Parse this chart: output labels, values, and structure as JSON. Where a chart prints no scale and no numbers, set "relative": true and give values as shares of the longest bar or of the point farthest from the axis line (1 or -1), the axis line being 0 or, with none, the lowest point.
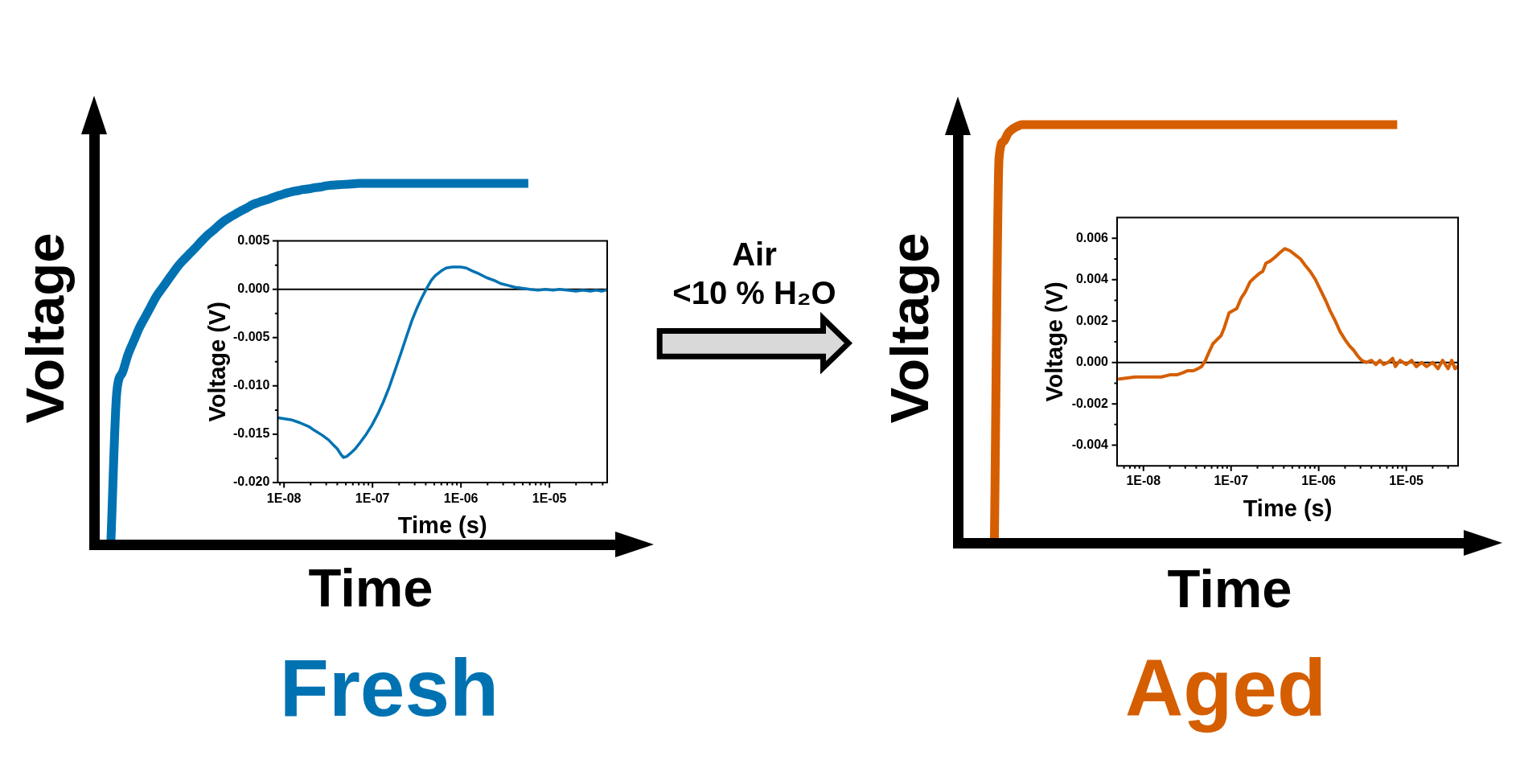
{
  "chart_data": [
    {
      "type": "line",
      "relative": true,
      "title": "Fresh",
      "xlabel": "Time",
      "ylabel": "Voltage",
      "color": "#0072b2",
      "categories": [
        null,
        null,
        null,
        null,
        null,
        null,
        null,
        null,
        null,
        null,
        null,
        null,
        null,
        null,
        null,
        null,
        null,
        null,
        null,
        null,
        null,
        null,
        null,
        null,
        null,
        null,
        null,
        null,
        null,
        null,
        null,
        null,
        null,
        null,
        null,
        null,
        null,
        null,
        null,
        null,
        null,
        null,
        null,
        null,
        null,
        null,
        null,
        null,
        null,
        null,
        null,
        null,
        null,
        null,
        null,
        null,
        null,
        null,
        null,
        null,
        null,
        null,
        null,
        null,
        null,
        null,
        null,
        null,
        null,
        null,
        null,
        null,
        null,
        null,
        null,
        null,
        null,
        null,
        null,
        null,
        null,
        null,
        null,
        null,
        null,
        null,
        null,
        null,
        null,
        null,
        null,
        null,
        null,
        null,
        null,
        null
      ],
      "values": [
        null,
        null,
        null,
        0.02,
        0.42,
        0.476,
        0.526,
        0.563,
        0.6,
        0.629,
        0.658,
        0.687,
        0.709,
        0.731,
        0.753,
        0.774,
        0.791,
        0.807,
        0.823,
        0.84,
        0.856,
        0.869,
        0.883,
        0.896,
        0.906,
        0.915,
        0.924,
        0.932,
        0.941,
        0.947,
        0.952,
        0.957,
        0.963,
        0.968,
        0.973,
        0.977,
        0.98,
        0.983,
        0.985,
        0.988,
        0.99,
        0.993,
        0.995,
        0.996,
        0.997,
        0.998,
        0.999,
        1,
        1,
        1,
        1,
        1,
        1,
        1,
        1,
        1,
        1,
        1,
        1,
        1,
        1,
        1,
        1,
        1,
        1,
        1,
        1,
        1,
        1,
        1,
        1,
        1,
        1,
        1,
        1,
        1,
        1,
        null,
        null,
        null,
        null,
        null,
        null,
        null,
        null,
        null,
        null,
        null,
        null,
        null,
        null,
        null,
        null,
        null,
        null,
        null
      ]
    },
    {
      "type": "line",
      "xlabel": "Time (s)",
      "ylabel": "Voltage (V)",
      "log": "x",
      "color": "#0072b2",
      "xlim": [
        8.5e-09,
        4.5e-05
      ],
      "xticks": [
        {
          "value": 9e-09,
          "label": null
        },
        {
          "value": 1e-08,
          "label": "1E-08"
        },
        {
          "value": 2e-08,
          "label": null
        },
        {
          "value": 3e-08,
          "label": null
        },
        {
          "value": 4e-08,
          "label": null
        },
        {
          "value": 5e-08,
          "label": null
        },
        {
          "value": 6e-08,
          "label": null
        },
        {
          "value": 7e-08,
          "label": null
        },
        {
          "value": 8e-08,
          "label": null
        },
        {
          "value": 9e-08,
          "label": null
        },
        {
          "value": 1e-07,
          "label": "1E-07"
        },
        {
          "value": 2e-07,
          "label": null
        },
        {
          "value": 3e-07,
          "label": null
        },
        {
          "value": 4e-07,
          "label": null
        },
        {
          "value": 5e-07,
          "label": null
        },
        {
          "value": 6e-07,
          "label": null
        },
        {
          "value": 7e-07,
          "label": null
        },
        {
          "value": 8e-07,
          "label": null
        },
        {
          "value": 9e-07,
          "label": null
        },
        {
          "value": 1e-06,
          "label": "1E-06"
        },
        {
          "value": 2e-06,
          "label": null
        },
        {
          "value": 3e-06,
          "label": null
        },
        {
          "value": 4e-06,
          "label": null
        },
        {
          "value": 5e-06,
          "label": null
        },
        {
          "value": 6e-06,
          "label": null
        },
        {
          "value": 7e-06,
          "label": null
        },
        {
          "value": 8e-06,
          "label": null
        },
        {
          "value": 9e-06,
          "label": null
        },
        {
          "value": 1e-05,
          "label": "1E-05"
        },
        {
          "value": 2e-05,
          "label": null
        },
        {
          "value": 3e-05,
          "label": null
        },
        {
          "value": 4e-05,
          "label": null
        }
      ],
      "ylim": [
        -0.02,
        0.005
      ],
      "yticks": [
        {
          "value": -0.02,
          "label": "-0.020"
        },
        {
          "value": -0.0175,
          "label": null
        },
        -0.015,
        {
          "value": -0.0125,
          "label": null
        },
        {
          "value": -0.01,
          "label": "-0.010"
        },
        {
          "value": -0.0075,
          "label": null
        },
        -0.005,
        {
          "value": -0.0025,
          "label": null
        },
        {
          "value": 0,
          "label": "0.000"
        },
        {
          "value": 0.0025,
          "label": null
        },
        0.005
      ],
      "ref_lines": [
        {
          "axis": "y",
          "value": 0,
          "color": "#000000"
        }
      ],
      "x": [
        8.6e-09,
        1.2e-08,
        1.5e-08,
        1.9e-08,
        2.2e-08,
        2.7e-08,
        3.2e-08,
        3.6e-08,
        4e-08,
        4.4e-08,
        4.7e-08,
        5.1e-08,
        5.6e-08,
        6.4e-08,
        7.2e-08,
        8.5e-08,
        9.8e-08,
        1.15e-07,
        1.32e-07,
        1.55e-07,
        1.78e-07,
        2.1e-07,
        2.4e-07,
        2.8e-07,
        3.2e-07,
        3.6e-07,
        4.05e-07,
        4.6e-07,
        5.1e-07,
        6e-07,
        6.8e-07,
        8e-07,
        9.9e-07,
        1.15e-06,
        1.34e-06,
        1.6e-06,
        1.95e-06,
        2.4e-06,
        2.8e-06,
        3.4e-06,
        4.1e-06,
        5e-06,
        6e-06,
        7.5e-06,
        9e-06,
        1.1e-05,
        1.3e-05,
        1.6e-05,
        2e-05,
        2.4e-05,
        2.9e-05,
        3.4e-05,
        3.9e-05,
        4.3e-05,
        4.5e-05
      ],
      "values": [
        -0.0133,
        -0.0135,
        -0.0138,
        -0.0142,
        -0.0146,
        -0.0151,
        -0.0156,
        -0.0161,
        -0.0165,
        -0.0171,
        -0.0174,
        -0.0173,
        -0.017,
        -0.0165,
        -0.0159,
        -0.015,
        -0.0141,
        -0.0129,
        -0.0117,
        -0.0101,
        -0.0085,
        -0.0066,
        -0.005,
        -0.0032,
        -0.0019,
        -0.0009,
        0,
        0.0009,
        0.0014,
        0.0019,
        0.0022,
        0.0023,
        0.0023,
        0.0022,
        0.0019,
        0.0016,
        0.0012,
        0.0009,
        0.0006,
        0.0004,
        0.0002,
        0.0001,
        0,
        -0.0001,
        0,
        -0.0001,
        0,
        -0.0001,
        -0.0002,
        -0.0001,
        -0.0002,
        -0.0001,
        -0.0002,
        -0.0001,
        0
      ]
    },
    {
      "type": "other",
      "annotations": [
        "Air",
        "<10 % H₂O"
      ]
    },
    {
      "type": "line",
      "relative": true,
      "title": "Aged",
      "xlabel": "Time",
      "ylabel": "Voltage",
      "color": "#d55e00",
      "categories": [
        null,
        null,
        null,
        null,
        null,
        null,
        null,
        null,
        null,
        null,
        null,
        null,
        null,
        null,
        null,
        null,
        null,
        null,
        null,
        null,
        null,
        null,
        null,
        null,
        null,
        null,
        null,
        null,
        null,
        null,
        null,
        null,
        null,
        null,
        null,
        null,
        null,
        null,
        null,
        null,
        null,
        null,
        null,
        null,
        null,
        null,
        null,
        null,
        null,
        null,
        null,
        null,
        null,
        null,
        null,
        null,
        null,
        null,
        null,
        null,
        null,
        null,
        null,
        null,
        null,
        null,
        null,
        null,
        null,
        null,
        null,
        null,
        null,
        null,
        null,
        null,
        null,
        null,
        null,
        null,
        null,
        null,
        null,
        null,
        null,
        null,
        null,
        null,
        null,
        null,
        null,
        null,
        null,
        null,
        null,
        null,
        null,
        null,
        null,
        null,
        null,
        null,
        null,
        null,
        null,
        null,
        null,
        null,
        null,
        null,
        null,
        null,
        null,
        null,
        null
      ],
      "values": [
        null,
        null,
        null,
        null,
        null,
        null,
        null,
        null,
        0.02,
        0.92,
        0.96,
        0.98,
        0.99,
        0.996,
        1,
        1,
        1,
        1,
        1,
        1,
        1,
        1,
        1,
        1,
        1,
        1,
        1,
        1,
        1,
        1,
        1,
        1,
        1,
        1,
        1,
        1,
        1,
        1,
        1,
        1,
        1,
        1,
        1,
        1,
        1,
        1,
        1,
        1,
        1,
        1,
        1,
        1,
        1,
        1,
        1,
        1,
        1,
        1,
        1,
        1,
        1,
        1,
        1,
        1,
        1,
        1,
        1,
        1,
        1,
        1,
        1,
        1,
        1,
        1,
        1,
        1,
        1,
        1,
        1,
        1,
        1,
        1,
        1,
        1,
        1,
        1,
        1,
        1,
        1,
        1,
        1,
        1,
        1,
        1,
        1,
        1,
        null,
        null,
        null,
        null,
        null,
        null,
        null,
        null,
        null,
        null,
        null,
        null,
        null,
        null,
        null,
        null,
        null,
        null,
        null
      ]
    },
    {
      "type": "line",
      "xlabel": "Time (s)",
      "ylabel": "Voltage (V)",
      "log": "x",
      "color": "#d55e00",
      "xlim": [
        5e-09,
        3.9e-05
      ],
      "xticks": [
        {
          "value": 6e-09,
          "label": null
        },
        {
          "value": 7e-09,
          "label": null
        },
        {
          "value": 8e-09,
          "label": null
        },
        {
          "value": 9e-09,
          "label": null
        },
        {
          "value": 1e-08,
          "label": "1E-08"
        },
        {
          "value": 2e-08,
          "label": null
        },
        {
          "value": 3e-08,
          "label": null
        },
        {
          "value": 4e-08,
          "label": null
        },
        {
          "value": 5e-08,
          "label": null
        },
        {
          "value": 6e-08,
          "label": null
        },
        {
          "value": 7e-08,
          "label": null
        },
        {
          "value": 8e-08,
          "label": null
        },
        {
          "value": 9e-08,
          "label": null
        },
        {
          "value": 1e-07,
          "label": "1E-07"
        },
        {
          "value": 2e-07,
          "label": null
        },
        {
          "value": 3e-07,
          "label": null
        },
        {
          "value": 4e-07,
          "label": null
        },
        {
          "value": 5e-07,
          "label": null
        },
        {
          "value": 6e-07,
          "label": null
        },
        {
          "value": 7e-07,
          "label": null
        },
        {
          "value": 8e-07,
          "label": null
        },
        {
          "value": 9e-07,
          "label": null
        },
        {
          "value": 1e-06,
          "label": "1E-06"
        },
        {
          "value": 2e-06,
          "label": null
        },
        {
          "value": 3e-06,
          "label": null
        },
        {
          "value": 4e-06,
          "label": null
        },
        {
          "value": 5e-06,
          "label": null
        },
        {
          "value": 6e-06,
          "label": null
        },
        {
          "value": 7e-06,
          "label": null
        },
        {
          "value": 8e-06,
          "label": null
        },
        {
          "value": 9e-06,
          "label": null
        },
        {
          "value": 1e-05,
          "label": "1E-05"
        },
        {
          "value": 2e-05,
          "label": null
        },
        {
          "value": 3e-05,
          "label": null
        }
      ],
      "ylim": [
        -0.005,
        0.007
      ],
      "yticks": [
        -0.004,
        {
          "value": -0.003,
          "label": null
        },
        -0.002,
        {
          "value": -0.001,
          "label": null
        },
        {
          "value": 0,
          "label": "0.000"
        },
        {
          "value": 0.001,
          "label": null
        },
        0.002,
        {
          "value": 0.003,
          "label": null
        },
        0.004,
        {
          "value": 0.005,
          "label": null
        },
        0.006
      ],
      "ref_lines": [
        {
          "axis": "y",
          "value": 0,
          "color": "#000000"
        }
      ],
      "x": [
        5.3e-09,
        8e-09,
        1.1e-08,
        1.3e-08,
        1.6e-08,
        2e-08,
        2.4e-08,
        2.8e-08,
        3.2e-08,
        3.7e-08,
        4.2e-08,
        4.6e-08,
        5.1e-08,
        5.6e-08,
        6.2e-08,
        6.9e-08,
        7.7e-08,
        8.4e-08,
        9.5e-08,
        1.05e-07,
        1.16e-07,
        1.3e-07,
        1.45e-07,
        1.65e-07,
        1.85e-07,
        2.1e-07,
        2.3e-07,
        2.5e-07,
        2.8e-07,
        3.2e-07,
        3.6e-07,
        4.1e-07,
        4.7e-07,
        5.4e-07,
        6.2e-07,
        7e-07,
        8e-07,
        9.2e-07,
        1.05e-06,
        1.2e-06,
        1.35e-06,
        1.55e-06,
        1.75e-06,
        2e-06,
        2.25e-06,
        2.5e-06,
        2.8e-06,
        3.1e-06,
        3.5e-06,
        4e-06,
        4.5e-06,
        5e-06,
        5.5e-06,
        6.2e-06,
        7e-06,
        7.5e-06,
        8.5e-06,
        1e-05,
        1.15e-05,
        1.3e-05,
        1.5e-05,
        1.7e-05,
        2e-05,
        2.3e-05,
        2.6e-05,
        3e-05,
        3.3e-05,
        3.6e-05,
        3.85e-05
      ],
      "values": [
        -0.0008,
        -0.0007,
        -0.0007,
        -0.0007,
        -0.0007,
        -0.0006,
        -0.0006,
        -0.0005,
        -0.0004,
        -0.0004,
        -0.0003,
        -0.0002,
        0.0001,
        0.0005,
        0.0009,
        0.0011,
        0.0013,
        0.0017,
        0.0024,
        0.0025,
        0.0026,
        0.0031,
        0.0034,
        0.0039,
        0.0041,
        0.0043,
        0.0044,
        0.0048,
        0.0049,
        0.0051,
        0.0053,
        0.0055,
        0.0054,
        0.0052,
        0.005,
        0.0047,
        0.0044,
        0.004,
        0.0035,
        0.003,
        0.0025,
        0.002,
        0.0015,
        0.0011,
        0.0008,
        0.0006,
        0.0003,
        0.0001,
        0,
        0.0001,
        -0.0001,
        0.0001,
        -0.0001,
        0,
        0.0002,
        -0.0002,
        0.0001,
        -0.0001,
        0.0001,
        -0.0002,
        0,
        -0.0002,
        0,
        -0.0003,
        0.0001,
        -0.0003,
        0.0001,
        -0.0003,
        -0.0002
      ]
    }
  ]
}
